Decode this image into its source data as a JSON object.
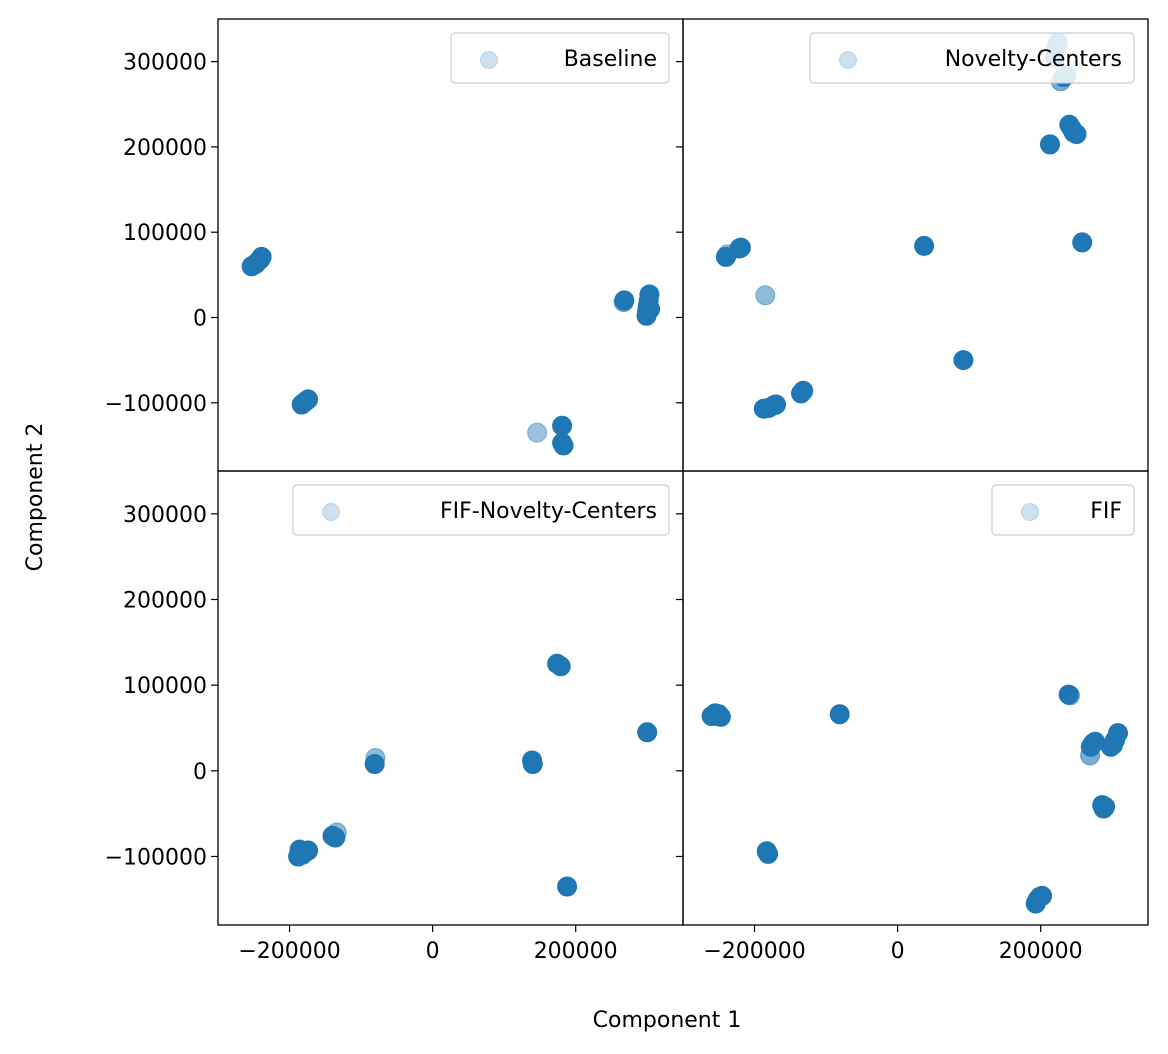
{
  "figure": {
    "xlabel": "Component 1",
    "ylabel": "Component 2",
    "marker_color": "#1f77b4"
  },
  "chart_data": [
    {
      "type": "scatter",
      "legend": "Baseline",
      "legend_placement": "top-right",
      "xlim": [
        -300000,
        350000
      ],
      "ylim": [
        -180000,
        350000
      ],
      "grid": false,
      "points": [
        [
          -253000,
          60000,
          1
        ],
        [
          -249000,
          62000,
          1
        ],
        [
          -245000,
          65000,
          1
        ],
        [
          -241000,
          68000,
          1
        ],
        [
          -239000,
          71000,
          1
        ],
        [
          -247000,
          63000,
          1
        ],
        [
          -183000,
          -102000,
          1
        ],
        [
          -180000,
          -100000,
          1
        ],
        [
          -177000,
          -98000,
          1
        ],
        [
          -174000,
          -96000,
          1
        ],
        [
          146000,
          -135000,
          0.45
        ],
        [
          181000,
          -127000,
          1
        ],
        [
          181000,
          -147000,
          1
        ],
        [
          183000,
          -150000,
          1
        ],
        [
          267000,
          18000,
          0.6
        ],
        [
          268000,
          20000,
          1
        ],
        [
          303000,
          27000,
          1
        ],
        [
          302000,
          20000,
          1
        ],
        [
          301000,
          14000,
          1
        ],
        [
          300000,
          8000,
          1
        ],
        [
          299000,
          2000,
          1
        ],
        [
          304000,
          10000,
          1
        ]
      ]
    },
    {
      "type": "scatter",
      "legend": "Novelty-Centers",
      "legend_placement": "top-right",
      "xlim": [
        -300000,
        350000
      ],
      "ylim": [
        -180000,
        350000
      ],
      "grid": false,
      "points": [
        [
          -240000,
          71000,
          1
        ],
        [
          -238000,
          74000,
          0.5
        ],
        [
          -221000,
          81000,
          1
        ],
        [
          -219000,
          82000,
          1
        ],
        [
          -185000,
          26000,
          0.5
        ],
        [
          -187000,
          -107000,
          1
        ],
        [
          -180000,
          -106000,
          1
        ],
        [
          -173000,
          -103000,
          1
        ],
        [
          -170000,
          -102000,
          1
        ],
        [
          -135000,
          -89000,
          1
        ],
        [
          -132000,
          -86000,
          1
        ],
        [
          37000,
          84000,
          1
        ],
        [
          92000,
          -50000,
          1
        ],
        [
          213000,
          203000,
          1
        ],
        [
          220000,
          305000,
          1
        ],
        [
          221000,
          312000,
          1
        ],
        [
          222000,
          318000,
          1
        ],
        [
          224000,
          322000,
          1
        ],
        [
          219000,
          308000,
          0.6
        ],
        [
          228000,
          277000,
          0.6
        ],
        [
          232000,
          282000,
          1
        ],
        [
          236000,
          284000,
          1
        ],
        [
          240000,
          226000,
          1
        ],
        [
          243000,
          222000,
          1
        ],
        [
          246000,
          217000,
          1
        ],
        [
          250000,
          215000,
          1
        ],
        [
          258000,
          88000,
          1
        ]
      ]
    },
    {
      "type": "scatter",
      "legend": "FIF-Novelty-Centers",
      "legend_placement": "top-right",
      "xlim": [
        -300000,
        350000
      ],
      "ylim": [
        -180000,
        350000
      ],
      "grid": false,
      "points": [
        [
          -188000,
          -100000,
          1
        ],
        [
          -186000,
          -92000,
          1
        ],
        [
          -182000,
          -98000,
          1
        ],
        [
          -178000,
          -95000,
          1
        ],
        [
          -174000,
          -93000,
          1
        ],
        [
          -184000,
          -95000,
          1
        ],
        [
          -140000,
          -76000,
          1
        ],
        [
          -136000,
          -78000,
          1
        ],
        [
          -134000,
          -72000,
          0.5
        ],
        [
          -80000,
          15000,
          0.5
        ],
        [
          -81000,
          8000,
          1
        ],
        [
          139000,
          12000,
          1
        ],
        [
          140000,
          8000,
          1
        ],
        [
          174000,
          125000,
          1
        ],
        [
          179000,
          122000,
          1
        ],
        [
          188000,
          -135000,
          1
        ],
        [
          300000,
          45000,
          1
        ]
      ]
    },
    {
      "type": "scatter",
      "legend": "FIF",
      "legend_placement": "top-right",
      "xlim": [
        -300000,
        350000
      ],
      "ylim": [
        -180000,
        350000
      ],
      "grid": false,
      "points": [
        [
          -260000,
          64000,
          1
        ],
        [
          -255000,
          67000,
          1
        ],
        [
          -250000,
          66000,
          1
        ],
        [
          -247000,
          63000,
          1
        ],
        [
          -252000,
          64000,
          1
        ],
        [
          -183000,
          -94000,
          1
        ],
        [
          -181000,
          -97000,
          1
        ],
        [
          -81000,
          66000,
          1
        ],
        [
          193000,
          -155000,
          1
        ],
        [
          196000,
          -150000,
          1
        ],
        [
          199000,
          -147000,
          1
        ],
        [
          202000,
          -146000,
          1
        ],
        [
          239000,
          89000,
          1
        ],
        [
          241000,
          88000,
          0.6
        ],
        [
          269000,
          18000,
          0.6
        ],
        [
          270000,
          28000,
          1
        ],
        [
          273000,
          32000,
          1
        ],
        [
          276000,
          34000,
          1
        ],
        [
          286000,
          -40000,
          1
        ],
        [
          288000,
          -44000,
          1
        ],
        [
          290000,
          -42000,
          1
        ],
        [
          298000,
          28000,
          1
        ],
        [
          301000,
          30000,
          1
        ],
        [
          304000,
          36000,
          1
        ],
        [
          308000,
          44000,
          1
        ]
      ]
    }
  ]
}
